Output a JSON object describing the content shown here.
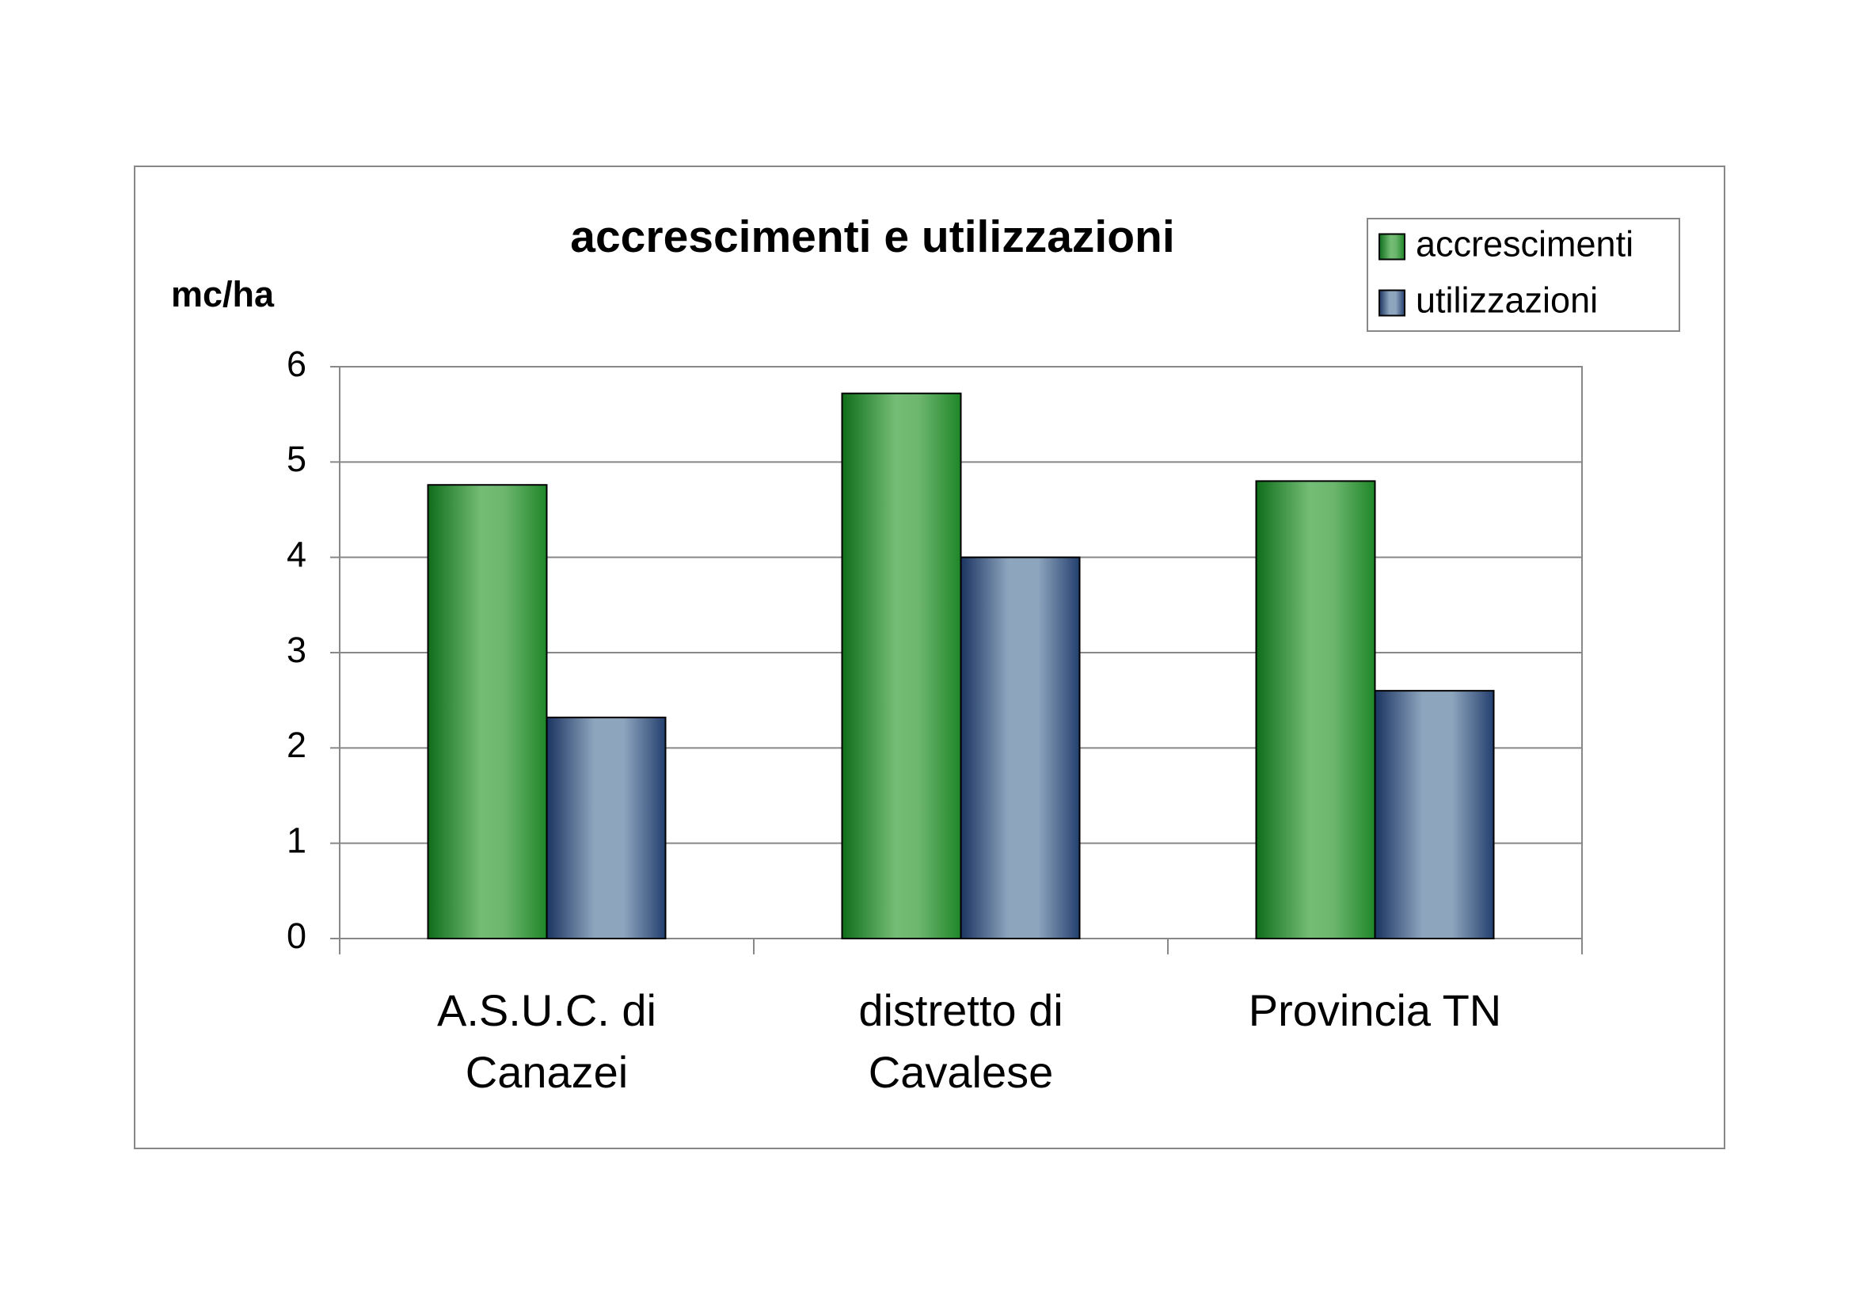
{
  "chart_data": {
    "type": "bar",
    "title": "accrescimenti e utilizzazioni",
    "y_axis_label": "mc/ha",
    "categories": [
      "A.S.U.C. di Canazei",
      "distretto di Cavalese",
      "Provincia TN"
    ],
    "series": [
      {
        "name": "accrescimenti",
        "color": "#2e9a3a",
        "values": [
          4.76,
          5.72,
          4.8
        ]
      },
      {
        "name": "utilizzazioni",
        "color": "#8fa7bf",
        "values": [
          2.32,
          4.0,
          2.6
        ]
      }
    ],
    "ylim": [
      0,
      6
    ],
    "yticks": [
      0,
      1,
      2,
      3,
      4,
      5,
      6
    ],
    "grid": true,
    "legend": "top-right"
  }
}
